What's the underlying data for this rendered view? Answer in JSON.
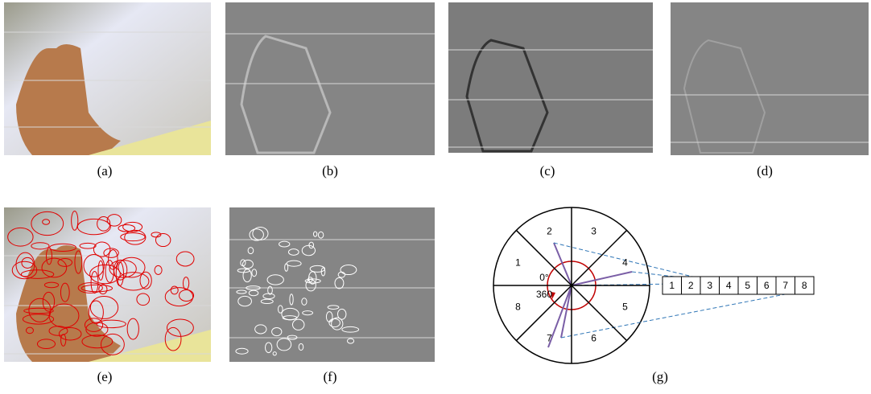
{
  "panels": [
    {
      "caption": "(a)"
    },
    {
      "caption": "(b)"
    },
    {
      "caption": "(c)"
    },
    {
      "caption": "(d)"
    },
    {
      "caption": "(e)"
    },
    {
      "caption": "(f)"
    },
    {
      "caption": "(g)"
    }
  ],
  "diagram": {
    "sectors": [
      "1",
      "2",
      "3",
      "4",
      "5",
      "6",
      "7",
      "8"
    ],
    "start_label": "0°",
    "end_label": "360",
    "bins": [
      "1",
      "2",
      "3",
      "4",
      "5",
      "6",
      "7",
      "8"
    ]
  }
}
